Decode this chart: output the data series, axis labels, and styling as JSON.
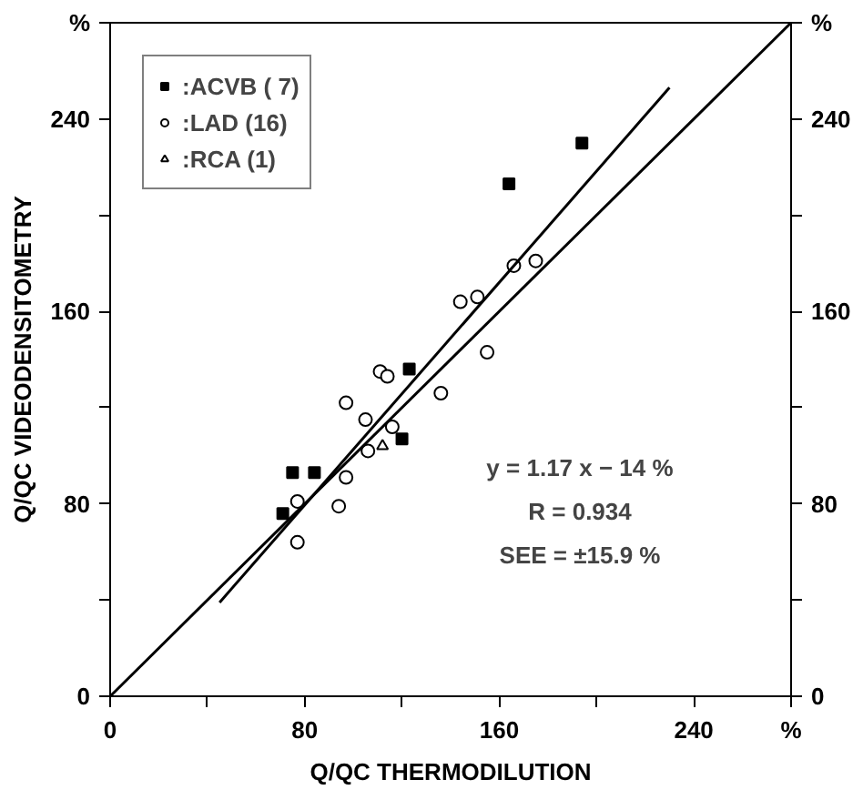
{
  "chart_data": {
    "type": "scatter",
    "xlabel": "Q/QC THERMODILUTION",
    "ylabel": "Q/QC VIDEODENSITOMETRY",
    "xlim": [
      0,
      280
    ],
    "ylim": [
      0,
      280
    ],
    "y2lim": [
      0,
      280
    ],
    "xticks": [
      0,
      {
        "value": 40,
        "label": null
      },
      80,
      {
        "value": 120,
        "label": null
      },
      160,
      {
        "value": 200,
        "label": null
      },
      240,
      {
        "value": 280,
        "label": "%"
      }
    ],
    "yticks": [
      0,
      {
        "value": 40,
        "label": null
      },
      80,
      {
        "value": 120,
        "label": null
      },
      160,
      {
        "value": 200,
        "label": null
      },
      240,
      {
        "value": 280,
        "label": "%"
      }
    ],
    "y2ticks": [
      0,
      {
        "value": 40,
        "label": null
      },
      80,
      {
        "value": 120,
        "label": null
      },
      160,
      {
        "value": 200,
        "label": null
      },
      240,
      {
        "value": 280,
        "label": "%"
      }
    ],
    "grid": false,
    "legend": "top left",
    "series": [
      {
        "name": ":ACVB ( 7)",
        "color": "#000000",
        "marker": "square",
        "x": [
          194,
          164,
          123,
          120,
          75,
          84,
          71
        ],
        "values": [
          230,
          213,
          136,
          107,
          93,
          93,
          76
        ]
      },
      {
        "name": ":LAD (16)",
        "color": "#000000",
        "marker": "circle",
        "x": [
          166,
          175,
          144,
          151,
          155,
          111,
          114,
          136,
          97,
          105,
          116,
          106,
          97,
          77,
          94,
          77
        ],
        "values": [
          179,
          181,
          164,
          166,
          143,
          135,
          133,
          126,
          122,
          115,
          112,
          102,
          91,
          81,
          79,
          64
        ]
      },
      {
        "name": ":RCA (1)",
        "color": "#000000",
        "marker": "triangle",
        "x": [
          112
        ],
        "values": [
          104
        ]
      },
      {
        "type": "line",
        "color": "#000000",
        "line_style": "solid",
        "x": [
          45,
          230
        ],
        "values": [
          39,
          253
        ]
      },
      {
        "type": "line",
        "color": "#000000",
        "line_style": "solid",
        "x": [
          0,
          280
        ],
        "values": [
          0,
          280
        ]
      }
    ],
    "annotations": [
      "y = 1.17 x − 14 %",
      "R = 0.934",
      "SEE = ±15.9 %"
    ]
  }
}
